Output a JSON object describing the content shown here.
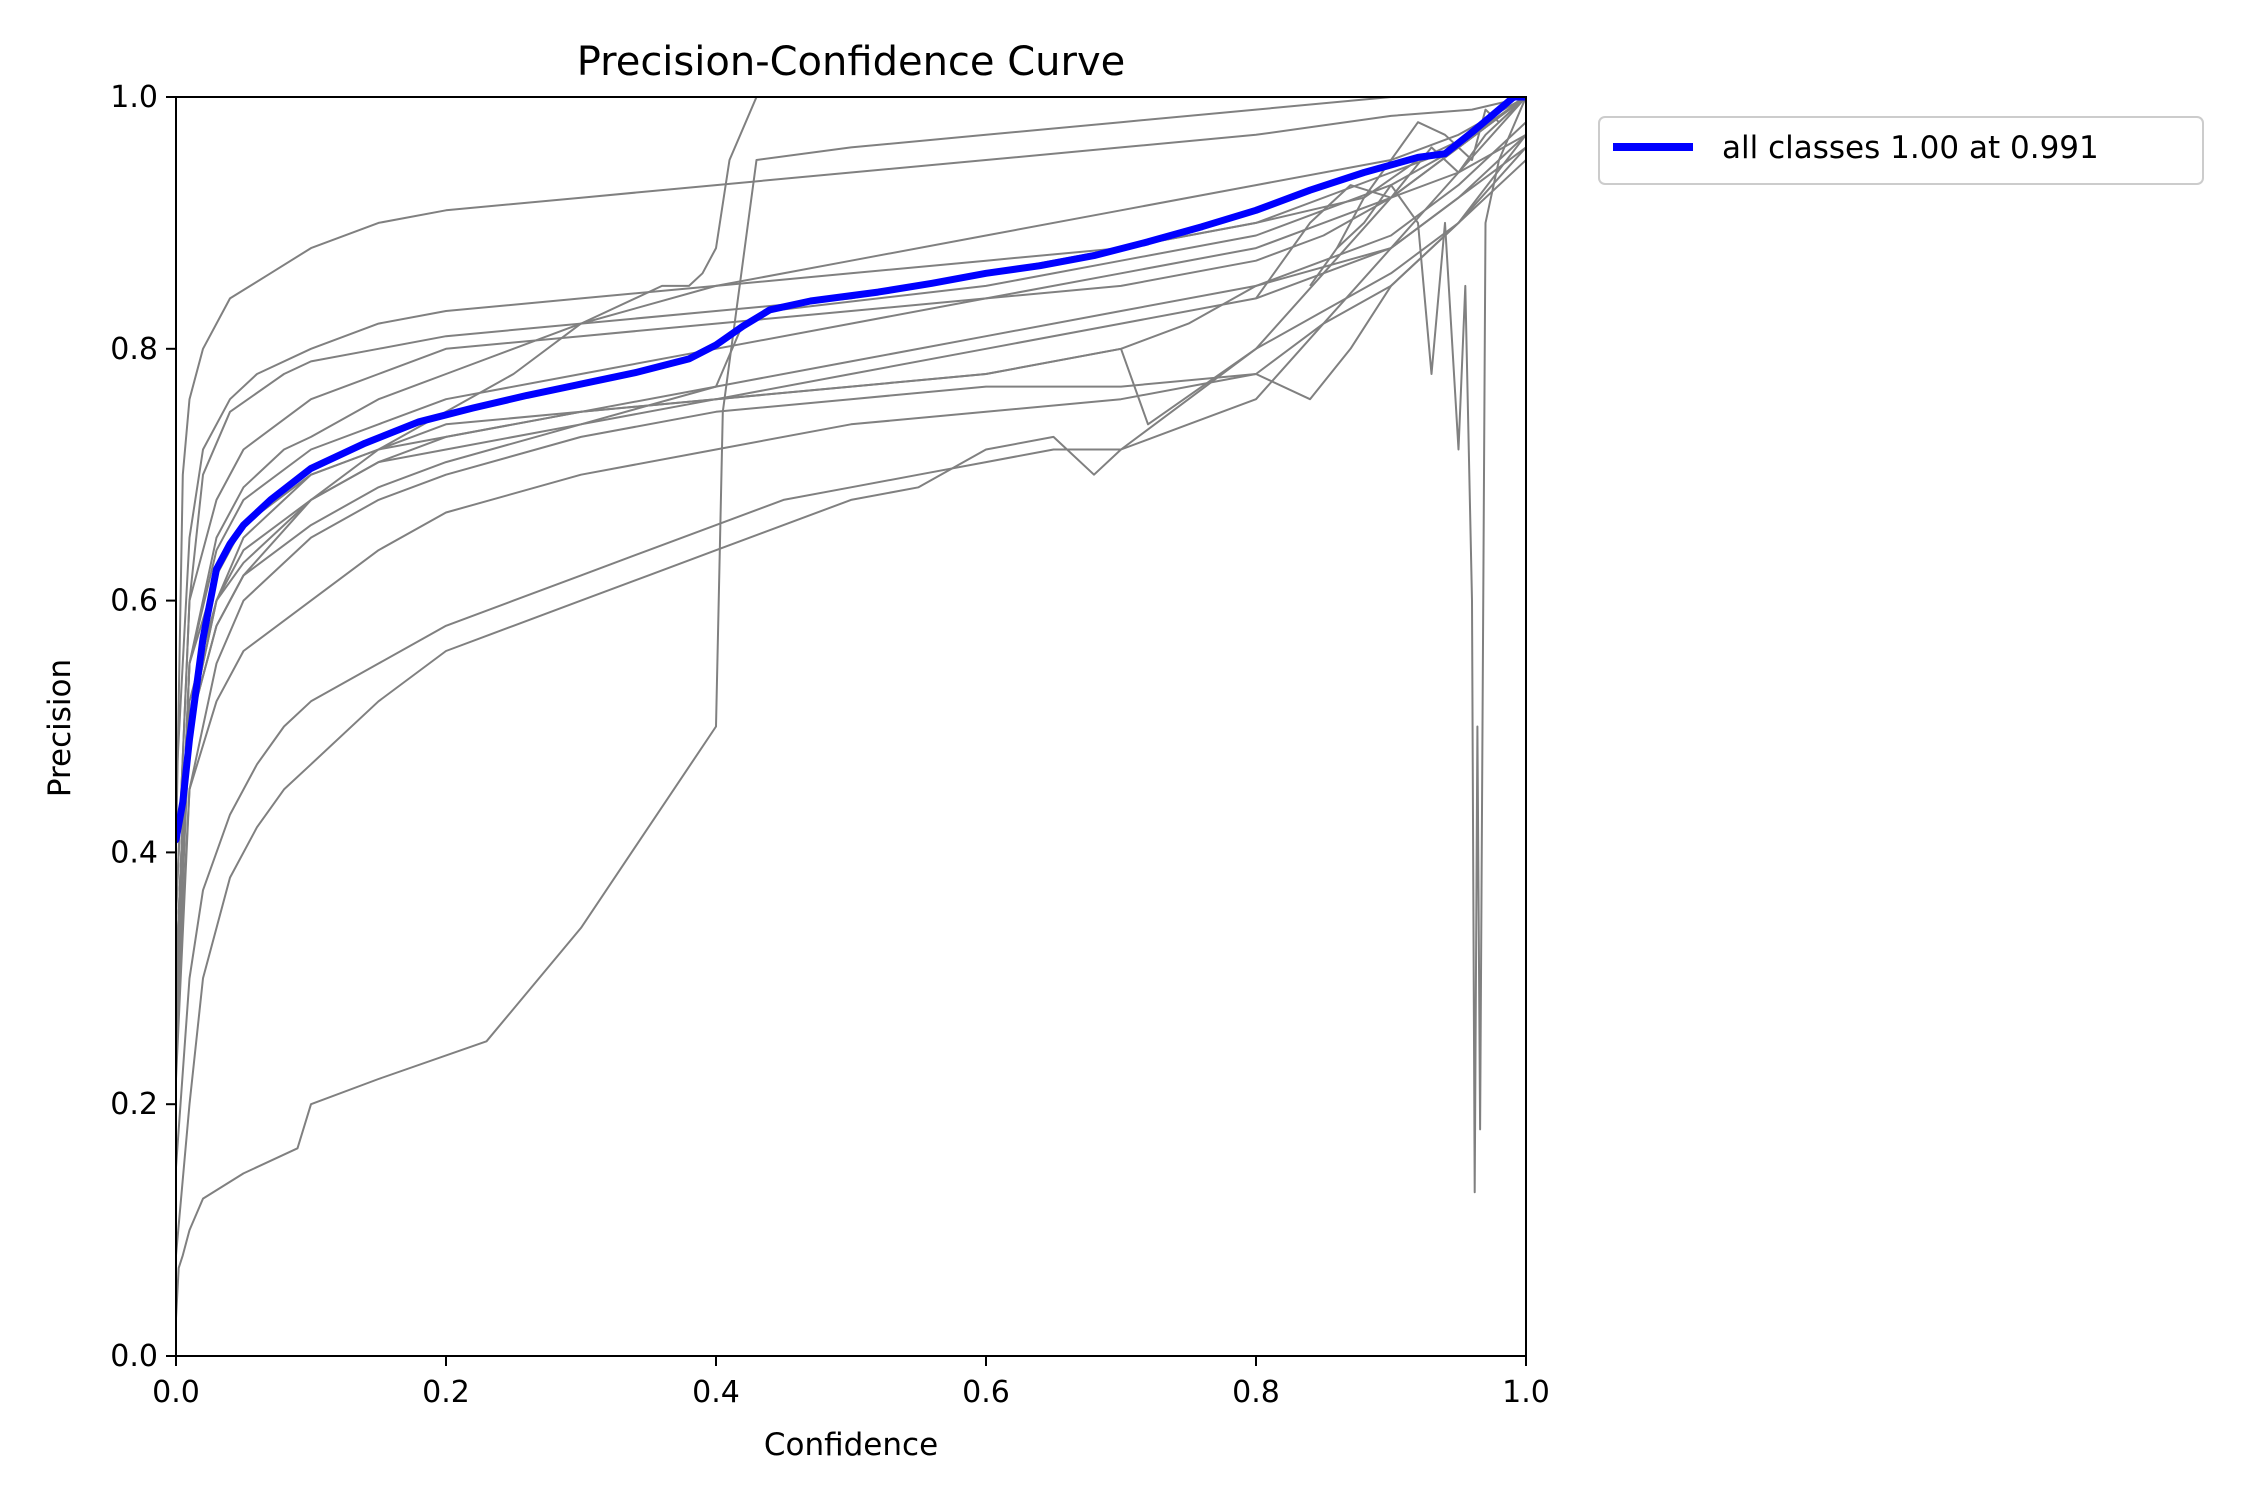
{
  "chart_data": {
    "type": "line",
    "title": "Precision-Confidence Curve",
    "xlabel": "Confidence",
    "ylabel": "Precision",
    "xlim": [
      0.0,
      1.0
    ],
    "ylim": [
      0.0,
      1.0
    ],
    "xticks": [
      "0.0",
      "0.2",
      "0.4",
      "0.6",
      "0.8",
      "1.0"
    ],
    "yticks": [
      "0.0",
      "0.2",
      "0.4",
      "0.6",
      "0.8",
      "1.0"
    ],
    "grid": false,
    "legend_position": "outside-top-right",
    "colors": {
      "class_curves": "#808080",
      "all_classes": "#0000ff"
    },
    "all_classes": {
      "name": "all classes 1.00 at 0.991",
      "x": [
        0.0,
        0.005,
        0.01,
        0.02,
        0.03,
        0.04,
        0.05,
        0.07,
        0.1,
        0.14,
        0.18,
        0.22,
        0.26,
        0.3,
        0.34,
        0.38,
        0.4,
        0.42,
        0.44,
        0.47,
        0.52,
        0.56,
        0.6,
        0.64,
        0.68,
        0.72,
        0.76,
        0.8,
        0.84,
        0.88,
        0.92,
        0.94,
        0.96,
        0.98,
        0.991,
        1.0
      ],
      "y": [
        0.41,
        0.44,
        0.49,
        0.57,
        0.625,
        0.645,
        0.66,
        0.68,
        0.705,
        0.725,
        0.742,
        0.753,
        0.763,
        0.772,
        0.781,
        0.792,
        0.803,
        0.818,
        0.831,
        0.838,
        0.845,
        0.852,
        0.86,
        0.866,
        0.874,
        0.885,
        0.897,
        0.91,
        0.926,
        0.94,
        0.952,
        0.955,
        0.972,
        0.99,
        1.0,
        1.0
      ]
    },
    "class_series": [
      {
        "x": [
          0.0,
          0.005,
          0.01,
          0.02,
          0.04,
          0.07,
          0.1,
          0.15,
          0.2,
          0.3,
          0.4,
          0.5,
          0.6,
          0.7,
          0.8,
          0.9,
          0.96,
          1.0
        ],
        "y": [
          0.4,
          0.7,
          0.76,
          0.8,
          0.84,
          0.86,
          0.88,
          0.9,
          0.91,
          0.92,
          0.93,
          0.94,
          0.95,
          0.96,
          0.97,
          0.985,
          0.99,
          1.0
        ]
      },
      {
        "x": [
          0.0,
          0.01,
          0.02,
          0.04,
          0.06,
          0.1,
          0.15,
          0.2,
          0.3,
          0.4,
          0.5,
          0.6,
          0.7,
          0.8,
          0.88,
          0.92,
          0.96,
          1.0
        ],
        "y": [
          0.45,
          0.65,
          0.72,
          0.76,
          0.78,
          0.8,
          0.82,
          0.83,
          0.84,
          0.85,
          0.86,
          0.87,
          0.88,
          0.9,
          0.92,
          0.95,
          0.97,
          1.0
        ]
      },
      {
        "x": [
          0.0,
          0.01,
          0.03,
          0.05,
          0.1,
          0.15,
          0.2,
          0.3,
          0.4,
          0.5,
          0.6,
          0.7,
          0.8,
          0.85,
          0.9,
          0.95,
          1.0
        ],
        "y": [
          0.35,
          0.6,
          0.68,
          0.72,
          0.76,
          0.78,
          0.8,
          0.81,
          0.82,
          0.83,
          0.84,
          0.85,
          0.87,
          0.89,
          0.92,
          0.94,
          0.97
        ]
      },
      {
        "x": [
          0.0,
          0.01,
          0.03,
          0.05,
          0.1,
          0.15,
          0.2,
          0.3,
          0.4,
          0.5,
          0.6,
          0.7,
          0.8,
          0.85,
          0.9,
          0.95,
          1.0
        ],
        "y": [
          0.3,
          0.55,
          0.64,
          0.68,
          0.72,
          0.74,
          0.76,
          0.78,
          0.8,
          0.82,
          0.84,
          0.86,
          0.88,
          0.9,
          0.92,
          0.96,
          1.0
        ]
      },
      {
        "x": [
          0.0,
          0.01,
          0.03,
          0.05,
          0.1,
          0.15,
          0.2,
          0.3,
          0.4,
          0.5,
          0.6,
          0.7,
          0.8,
          0.9,
          0.95,
          1.0
        ],
        "y": [
          0.3,
          0.5,
          0.6,
          0.64,
          0.68,
          0.71,
          0.73,
          0.75,
          0.77,
          0.79,
          0.81,
          0.83,
          0.85,
          0.89,
          0.93,
          0.98
        ]
      },
      {
        "x": [
          0.0,
          0.01,
          0.03,
          0.05,
          0.1,
          0.15,
          0.2,
          0.3,
          0.4,
          0.5,
          0.6,
          0.7,
          0.8,
          0.9,
          0.95,
          1.0
        ],
        "y": [
          0.28,
          0.5,
          0.58,
          0.62,
          0.66,
          0.69,
          0.71,
          0.74,
          0.76,
          0.78,
          0.8,
          0.82,
          0.84,
          0.88,
          0.92,
          0.97
        ]
      },
      {
        "x": [
          0.0,
          0.01,
          0.02,
          0.04,
          0.08,
          0.1,
          0.15,
          0.2,
          0.3,
          0.4,
          0.5,
          0.6,
          0.7,
          0.8,
          0.9,
          0.95,
          1.0
        ],
        "y": [
          0.35,
          0.6,
          0.7,
          0.75,
          0.78,
          0.79,
          0.8,
          0.81,
          0.82,
          0.83,
          0.84,
          0.86,
          0.88,
          0.9,
          0.94,
          0.96,
          1.0
        ]
      },
      {
        "x": [
          0.0,
          0.01,
          0.03,
          0.05,
          0.08,
          0.1,
          0.15,
          0.2,
          0.3,
          0.4,
          0.5,
          0.6,
          0.7,
          0.8,
          0.9,
          0.95,
          1.0
        ],
        "y": [
          0.3,
          0.55,
          0.65,
          0.69,
          0.72,
          0.73,
          0.76,
          0.78,
          0.82,
          0.85,
          0.87,
          0.89,
          0.91,
          0.93,
          0.95,
          0.97,
          1.0
        ]
      },
      {
        "x": [
          0.0,
          0.01,
          0.03,
          0.05,
          0.08,
          0.1,
          0.15,
          0.2,
          0.3,
          0.4,
          0.42,
          0.44,
          0.6,
          0.7,
          0.8,
          0.9,
          0.95,
          1.0
        ],
        "y": [
          0.3,
          0.52,
          0.6,
          0.63,
          0.66,
          0.68,
          0.71,
          0.72,
          0.74,
          0.77,
          0.82,
          0.83,
          0.85,
          0.87,
          0.89,
          0.93,
          0.96,
          1.0
        ]
      },
      {
        "x": [
          0.0,
          0.01,
          0.03,
          0.05,
          0.1,
          0.15,
          0.2,
          0.3,
          0.4,
          0.5,
          0.6,
          0.7,
          0.75,
          0.8,
          0.9,
          0.95,
          1.0
        ],
        "y": [
          0.25,
          0.5,
          0.6,
          0.65,
          0.7,
          0.72,
          0.73,
          0.75,
          0.76,
          0.77,
          0.78,
          0.8,
          0.82,
          0.85,
          0.88,
          0.92,
          0.96
        ]
      },
      {
        "x": [
          0.0,
          0.01,
          0.03,
          0.05,
          0.1,
          0.15,
          0.2,
          0.3,
          0.4,
          0.5,
          0.6,
          0.7,
          0.72,
          0.8,
          0.85,
          0.9,
          0.95,
          1.0
        ],
        "y": [
          0.3,
          0.55,
          0.62,
          0.66,
          0.7,
          0.72,
          0.74,
          0.75,
          0.76,
          0.77,
          0.78,
          0.8,
          0.74,
          0.8,
          0.83,
          0.86,
          0.9,
          0.95
        ]
      },
      {
        "x": [
          0.0,
          0.01,
          0.03,
          0.05,
          0.1,
          0.15,
          0.2,
          0.3,
          0.4,
          0.5,
          0.6,
          0.7,
          0.8,
          0.85,
          0.9,
          0.93,
          0.95,
          1.0
        ],
        "y": [
          0.25,
          0.45,
          0.55,
          0.6,
          0.65,
          0.68,
          0.7,
          0.73,
          0.75,
          0.76,
          0.77,
          0.77,
          0.78,
          0.82,
          0.85,
          0.88,
          0.9,
          0.97
        ]
      },
      {
        "x": [
          0.0,
          0.01,
          0.03,
          0.05,
          0.1,
          0.15,
          0.2,
          0.3,
          0.4,
          0.5,
          0.6,
          0.7,
          0.8,
          0.84,
          0.87,
          0.9,
          0.95,
          1.0
        ],
        "y": [
          0.22,
          0.45,
          0.52,
          0.56,
          0.6,
          0.64,
          0.67,
          0.7,
          0.72,
          0.74,
          0.75,
          0.76,
          0.78,
          0.76,
          0.8,
          0.85,
          0.9,
          0.96
        ]
      },
      {
        "x": [
          0.0,
          0.01,
          0.02,
          0.04,
          0.06,
          0.08,
          0.1,
          0.15,
          0.2,
          0.25,
          0.3,
          0.35,
          0.4,
          0.45,
          0.5,
          0.55,
          0.6,
          0.65,
          0.7,
          0.75,
          0.8,
          0.85,
          0.9,
          0.95,
          1.0
        ],
        "y": [
          0.15,
          0.3,
          0.37,
          0.43,
          0.47,
          0.5,
          0.52,
          0.55,
          0.58,
          0.6,
          0.62,
          0.64,
          0.66,
          0.68,
          0.69,
          0.7,
          0.71,
          0.72,
          0.72,
          0.74,
          0.76,
          0.82,
          0.88,
          0.94,
          1.0
        ]
      },
      {
        "x": [
          0.0,
          0.01,
          0.02,
          0.04,
          0.06,
          0.08,
          0.1,
          0.15,
          0.2,
          0.25,
          0.3,
          0.35,
          0.4,
          0.45,
          0.5,
          0.55,
          0.6,
          0.65,
          0.68,
          0.7,
          0.75,
          0.8,
          0.85,
          0.9,
          0.95,
          1.0
        ],
        "y": [
          0.08,
          0.2,
          0.3,
          0.38,
          0.42,
          0.45,
          0.47,
          0.52,
          0.56,
          0.58,
          0.6,
          0.62,
          0.64,
          0.66,
          0.68,
          0.69,
          0.72,
          0.73,
          0.7,
          0.72,
          0.76,
          0.8,
          0.86,
          0.92,
          0.96,
          1.0
        ]
      },
      {
        "x": [
          0.0,
          0.002,
          0.005,
          0.01,
          0.02,
          0.05,
          0.09,
          0.1,
          0.15,
          0.23,
          0.3,
          0.35,
          0.4,
          0.405,
          0.43,
          0.5,
          0.6,
          0.7,
          0.8,
          0.9,
          1.0
        ],
        "y": [
          0.03,
          0.07,
          0.08,
          0.1,
          0.125,
          0.145,
          0.165,
          0.2,
          0.22,
          0.25,
          0.34,
          0.42,
          0.5,
          0.75,
          0.95,
          0.96,
          0.97,
          0.98,
          0.99,
          1.0,
          1.0
        ]
      },
      {
        "x": [
          0.0,
          0.01,
          0.03,
          0.05,
          0.1,
          0.15,
          0.2,
          0.25,
          0.3,
          0.36,
          0.38,
          0.39,
          0.4,
          0.41,
          0.43
        ],
        "y": [
          0.3,
          0.5,
          0.58,
          0.62,
          0.68,
          0.72,
          0.75,
          0.78,
          0.82,
          0.85,
          0.85,
          0.86,
          0.88,
          0.95,
          1.0
        ]
      },
      {
        "x": [
          0.86,
          0.88,
          0.9,
          0.92,
          0.93,
          0.94,
          0.95,
          0.955,
          0.96,
          0.962,
          0.964,
          0.966,
          0.97,
          0.98,
          1.0
        ],
        "y": [
          0.88,
          0.9,
          0.93,
          0.9,
          0.78,
          0.9,
          0.72,
          0.85,
          0.6,
          0.13,
          0.5,
          0.18,
          0.9,
          0.95,
          1.0
        ]
      },
      {
        "x": [
          0.84,
          0.86,
          0.88,
          0.9,
          0.92,
          0.94,
          0.96,
          0.97,
          0.98,
          1.0
        ],
        "y": [
          0.85,
          0.88,
          0.92,
          0.95,
          0.98,
          0.97,
          0.95,
          0.99,
          0.98,
          1.0
        ]
      },
      {
        "x": [
          0.8,
          0.84,
          0.87,
          0.9,
          0.93,
          0.95,
          0.97,
          0.99,
          1.0
        ],
        "y": [
          0.84,
          0.9,
          0.93,
          0.92,
          0.96,
          0.94,
          0.97,
          0.99,
          1.0
        ]
      }
    ],
    "legend": {
      "label": "all classes 1.00 at 0.991"
    }
  }
}
